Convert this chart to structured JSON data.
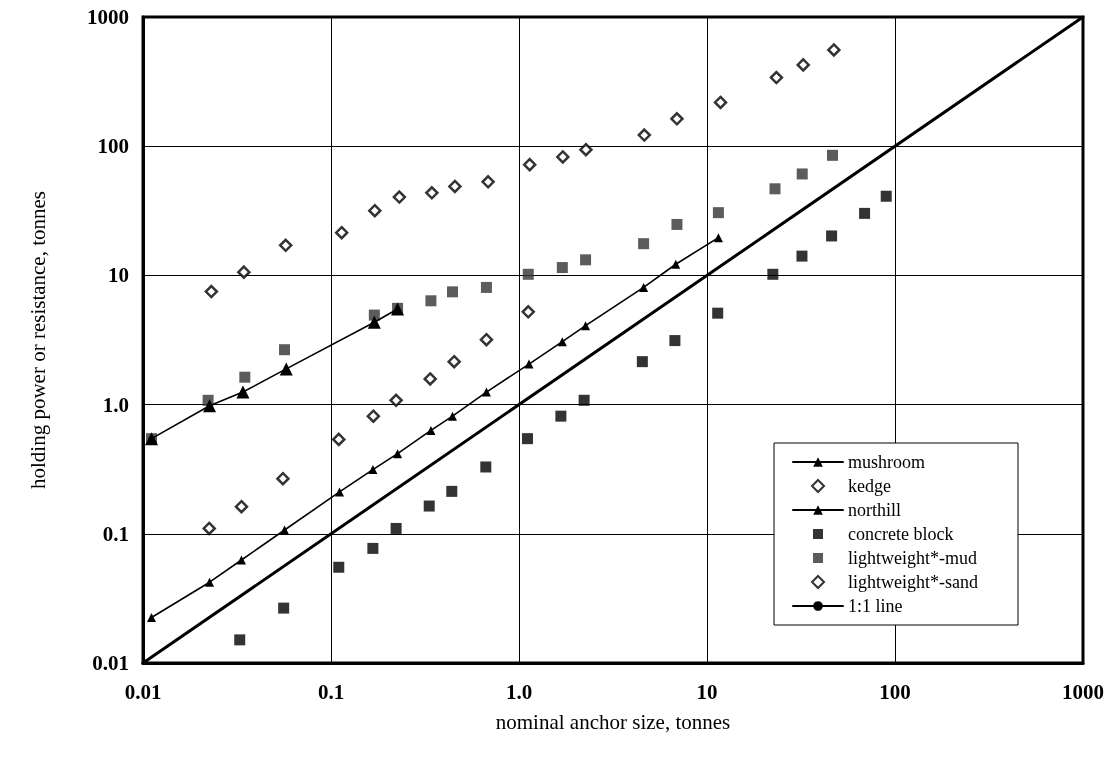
{
  "chart_data": {
    "type": "scatter",
    "xlabel": "nominal anchor size, tonnes",
    "ylabel": "holding power or resistance, tonnes",
    "log": "xy",
    "grid": true,
    "legend": "bottom right",
    "xlim": [
      0.01,
      1000
    ],
    "ylim": [
      0.01,
      1000
    ],
    "xticks": [
      0.01,
      0.1,
      {
        "value": 1,
        "label": "1.0"
      },
      10,
      100,
      1000
    ],
    "yticks": [
      0.01,
      0.1,
      {
        "value": 1,
        "label": "1.0"
      },
      10,
      100,
      1000
    ],
    "series": [
      {
        "name": "mushroom",
        "type": "line",
        "marker": "triangle",
        "line_style": "solid",
        "color": "#000000",
        "x": [
          0.0111,
          0.0226,
          0.0334,
          0.0566,
          0.111,
          0.167,
          0.226,
          0.34,
          0.443,
          0.671,
          1.13,
          1.7,
          2.26,
          4.6,
          6.82,
          11.5
        ],
        "values": [
          0.0225,
          0.0422,
          0.0627,
          0.107,
          0.211,
          0.314,
          0.417,
          0.631,
          0.814,
          1.25,
          2.06,
          3.07,
          4.08,
          8.07,
          12.2,
          19.6
        ]
      },
      {
        "name": "kedge",
        "marker": "diamond",
        "color": "#000000",
        "x": [
          0.0225,
          0.0334,
          0.0555,
          0.11,
          0.168,
          0.222,
          0.337,
          0.452,
          0.671,
          1.12
        ],
        "values": [
          0.11,
          0.162,
          0.267,
          0.538,
          0.814,
          1.08,
          1.58,
          2.15,
          3.18,
          5.23
        ]
      },
      {
        "name": "northill",
        "type": "line",
        "marker": "triangle",
        "line_style": "solid",
        "color": "#000000",
        "x": [
          0.0111,
          0.0226,
          0.034,
          0.0578,
          0.17,
          0.226
        ],
        "values": [
          0.545,
          0.98,
          1.25,
          1.89,
          4.34,
          5.5
        ]
      },
      {
        "name": "concrete block",
        "marker": "square",
        "color": "#000000",
        "x": [
          0.0327,
          0.056,
          0.11,
          0.167,
          0.222,
          0.333,
          0.439,
          0.666,
          1.11,
          1.67,
          2.22,
          4.53,
          6.75,
          11.4,
          22.4,
          32,
          46,
          68.9,
          89.8
        ],
        "values": [
          0.0151,
          0.0266,
          0.0551,
          0.0771,
          0.11,
          0.164,
          0.213,
          0.329,
          0.545,
          0.814,
          1.08,
          2.15,
          3.13,
          5.1,
          10.2,
          14.1,
          20.2,
          30.2,
          41
        ]
      },
      {
        "name": "lightweight*-mud",
        "marker": "square",
        "color": "#333333",
        "x": [
          0.0111,
          0.0222,
          0.0348,
          0.0566,
          0.17,
          0.226,
          0.34,
          0.443,
          0.671,
          1.12,
          1.7,
          2.26,
          4.6,
          6.92,
          11.5,
          23,
          32.1,
          46.5
        ],
        "values": [
          0.545,
          1.08,
          1.63,
          2.66,
          4.93,
          5.56,
          6.36,
          7.46,
          8.07,
          10.2,
          11.5,
          13.2,
          17.6,
          24.8,
          30.6,
          46.8,
          61,
          85
        ]
      },
      {
        "name": "lightweight*-sand",
        "marker": "diamond",
        "color": "#000000",
        "x": [
          0.0231,
          0.0344,
          0.0574,
          0.114,
          0.171,
          0.231,
          0.344,
          0.456,
          0.685,
          1.14,
          1.71,
          2.27,
          4.64,
          6.92,
          11.8,
          23.4,
          32.5,
          47.3
        ],
        "values": [
          7.5,
          10.6,
          17.1,
          21.4,
          31.7,
          40.4,
          43.6,
          48.8,
          53,
          72,
          82.6,
          94,
          122,
          163,
          218,
          340,
          426,
          556
        ]
      },
      {
        "name": "1:1 line",
        "type": "line",
        "marker": "none",
        "line_style": "solid",
        "color": "#000000",
        "x": [
          0.01,
          1000
        ],
        "values": [
          0.01,
          1000
        ]
      }
    ]
  }
}
